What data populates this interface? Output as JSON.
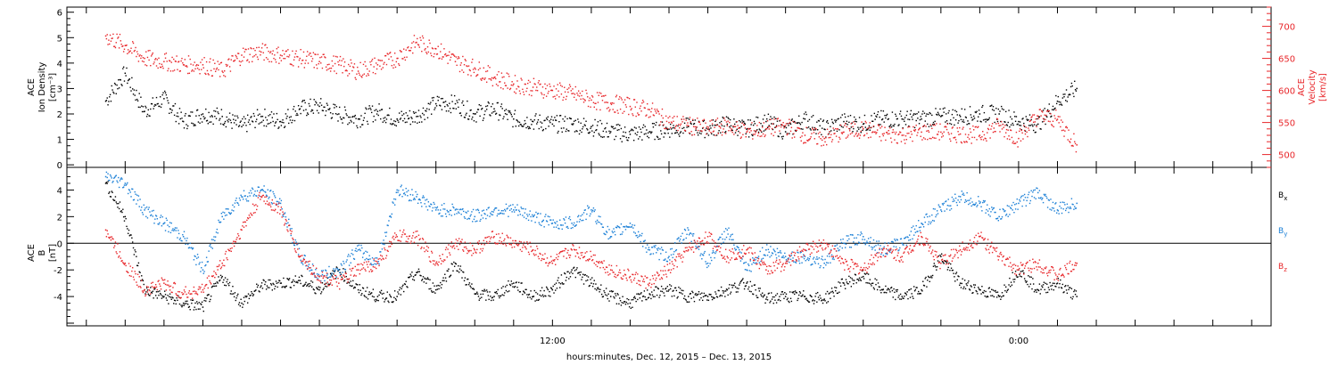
{
  "chart_data": [
    {
      "type": "scatter",
      "panel": "ion-density-velocity",
      "ylabel_left": [
        "ACE",
        "Ion Density",
        "[cm⁻³]"
      ],
      "ylabel_right": [
        "ACE",
        "Velocity",
        "[km/s]"
      ],
      "ylim_left": [
        -0.1,
        6.2
      ],
      "ylim_right": [
        480,
        730
      ],
      "yticks_left": [
        "0",
        "1",
        "2",
        "3",
        "4",
        "5",
        "6"
      ],
      "yticks_right": [
        "500",
        "550",
        "600",
        "650",
        "700"
      ],
      "series": [
        {
          "name": "",
          "color": "#000000",
          "axis": "left",
          "x": [
            0.0,
            0.5,
            1.0,
            1.5,
            2.0,
            2.5,
            3.0,
            3.5,
            4.0,
            4.5,
            5.0,
            5.5,
            6.0,
            6.5,
            7.0,
            7.5,
            8.0,
            8.5,
            9.0,
            9.5,
            10.0,
            10.5,
            11.0,
            11.5,
            12.0,
            12.5,
            13.0,
            13.5,
            14.0,
            14.5,
            15.0,
            15.5,
            16.0,
            16.5,
            17.0,
            17.5,
            18.0,
            18.5,
            19.0,
            19.5,
            20.0,
            20.5,
            21.0,
            21.5,
            22.0,
            22.5,
            23.0,
            23.5,
            24.0,
            24.5,
            25.0
          ],
          "y": [
            2.5,
            3.6,
            2.1,
            2.6,
            1.7,
            2.0,
            1.9,
            1.5,
            1.9,
            1.7,
            2.2,
            2.3,
            2.0,
            1.8,
            2.1,
            1.8,
            1.9,
            2.4,
            2.4,
            2.0,
            2.2,
            1.8,
            1.7,
            1.6,
            1.6,
            1.5,
            1.3,
            1.2,
            1.3,
            1.4,
            1.5,
            1.4,
            1.6,
            1.4,
            1.7,
            1.3,
            1.8,
            1.4,
            1.7,
            1.6,
            1.8,
            1.8,
            1.8,
            1.9,
            1.9,
            2.0,
            2.0,
            1.7,
            1.6,
            2.5,
            3.0
          ]
        },
        {
          "name": "",
          "color": "#e8262a",
          "axis": "right",
          "x": [
            0.0,
            0.5,
            1.0,
            1.5,
            2.0,
            2.5,
            3.0,
            3.5,
            4.0,
            4.5,
            5.0,
            5.5,
            6.0,
            6.5,
            7.0,
            7.5,
            8.0,
            8.5,
            9.0,
            9.5,
            10.0,
            10.5,
            11.0,
            11.5,
            12.0,
            12.5,
            13.0,
            13.5,
            14.0,
            14.5,
            15.0,
            15.5,
            16.0,
            16.5,
            17.0,
            17.5,
            18.0,
            18.5,
            19.0,
            19.5,
            20.0,
            20.5,
            21.0,
            21.5,
            22.0,
            22.5,
            23.0,
            23.5,
            24.0,
            24.5,
            25.0
          ],
          "y": [
            685,
            670,
            650,
            645,
            640,
            640,
            630,
            655,
            660,
            655,
            650,
            645,
            640,
            630,
            640,
            650,
            675,
            665,
            645,
            635,
            620,
            610,
            605,
            600,
            595,
            585,
            580,
            575,
            570,
            550,
            545,
            540,
            545,
            535,
            540,
            545,
            530,
            525,
            535,
            540,
            532,
            530,
            535,
            535,
            532,
            530,
            545,
            525,
            560,
            555,
            515
          ]
        }
      ]
    },
    {
      "type": "scatter",
      "panel": "magnetic-field",
      "ylabel_left": [
        "ACE",
        "B",
        "[nT]"
      ],
      "ylim_left": [
        -6.2,
        5.7
      ],
      "yticks_left": [
        "-4",
        "-2",
        "0",
        "2",
        "4"
      ],
      "legend": [
        {
          "label": "Bx",
          "color": "#000000"
        },
        {
          "label": "By",
          "color": "#1a7fd6"
        },
        {
          "label": "Bz",
          "color": "#e8262a"
        }
      ],
      "series": [
        {
          "name": "Bx",
          "color": "#000000",
          "x": [
            0.0,
            0.5,
            1.0,
            1.5,
            2.0,
            2.5,
            3.0,
            3.5,
            4.0,
            4.5,
            5.0,
            5.5,
            6.0,
            6.5,
            7.0,
            7.5,
            8.0,
            8.5,
            9.0,
            9.5,
            10.0,
            10.5,
            11.0,
            11.5,
            12.0,
            12.5,
            13.0,
            13.5,
            14.0,
            14.5,
            15.0,
            15.5,
            16.0,
            16.5,
            17.0,
            17.5,
            18.0,
            18.5,
            19.0,
            19.5,
            20.0,
            20.5,
            21.0,
            21.5,
            22.0,
            22.5,
            23.0,
            23.5,
            24.0,
            24.5,
            25.0
          ],
          "y": [
            4.5,
            2.0,
            -3.5,
            -4.0,
            -4.5,
            -4.8,
            -2.5,
            -4.5,
            -3.2,
            -3.0,
            -2.8,
            -3.5,
            -2.0,
            -3.5,
            -4.0,
            -4.0,
            -2.2,
            -3.5,
            -1.5,
            -3.8,
            -4.0,
            -3.0,
            -4.0,
            -3.5,
            -2.0,
            -3.0,
            -4.0,
            -4.5,
            -3.8,
            -3.5,
            -4.0,
            -4.0,
            -3.5,
            -3.0,
            -4.2,
            -4.0,
            -4.0,
            -4.2,
            -3.0,
            -2.5,
            -3.5,
            -4.0,
            -3.5,
            -1.0,
            -3.0,
            -3.5,
            -4.0,
            -2.0,
            -3.5,
            -3.0,
            -4.0
          ]
        },
        {
          "name": "By",
          "color": "#1a7fd6",
          "x": [
            0.0,
            0.5,
            1.0,
            1.5,
            2.0,
            2.5,
            3.0,
            3.5,
            4.0,
            4.5,
            5.0,
            5.5,
            6.0,
            6.5,
            7.0,
            7.5,
            8.0,
            8.5,
            9.0,
            9.5,
            10.0,
            10.5,
            11.0,
            11.5,
            12.0,
            12.5,
            13.0,
            13.5,
            14.0,
            14.5,
            15.0,
            15.5,
            16.0,
            16.5,
            17.0,
            17.5,
            18.0,
            18.5,
            19.0,
            19.5,
            20.0,
            20.5,
            21.0,
            21.5,
            22.0,
            22.5,
            23.0,
            23.5,
            24.0,
            24.5,
            25.0
          ],
          "y": [
            5.0,
            4.5,
            2.5,
            1.5,
            0.5,
            -2.0,
            2.0,
            3.5,
            4.0,
            3.0,
            -1.0,
            -2.5,
            -2.0,
            -0.5,
            -1.5,
            4.0,
            3.5,
            2.5,
            2.5,
            2.0,
            2.5,
            2.5,
            2.0,
            1.5,
            1.5,
            2.5,
            0.5,
            1.5,
            -0.5,
            -1.0,
            1.0,
            -1.5,
            1.0,
            -2.0,
            -0.5,
            -1.0,
            -1.0,
            -1.5,
            0.0,
            0.5,
            -0.5,
            0.0,
            1.5,
            2.5,
            3.5,
            3.0,
            2.0,
            3.0,
            3.8,
            2.5,
            3.0
          ]
        },
        {
          "name": "Bz",
          "color": "#e8262a",
          "x": [
            0.0,
            0.5,
            1.0,
            1.5,
            2.0,
            2.5,
            3.0,
            3.5,
            4.0,
            4.5,
            5.0,
            5.5,
            6.0,
            6.5,
            7.0,
            7.5,
            8.0,
            8.5,
            9.0,
            9.5,
            10.0,
            10.5,
            11.0,
            11.5,
            12.0,
            12.5,
            13.0,
            13.5,
            14.0,
            14.5,
            15.0,
            15.5,
            16.0,
            16.5,
            17.0,
            17.5,
            18.0,
            18.5,
            19.0,
            19.5,
            20.0,
            20.5,
            21.0,
            21.5,
            22.0,
            22.5,
            23.0,
            23.5,
            24.0,
            24.5,
            25.0
          ],
          "y": [
            1.0,
            -1.5,
            -3.5,
            -3.0,
            -3.8,
            -3.5,
            -1.5,
            1.0,
            3.5,
            2.5,
            -1.0,
            -2.5,
            -3.0,
            -2.0,
            -1.5,
            0.5,
            0.5,
            -1.5,
            0.0,
            -0.5,
            0.5,
            0.0,
            -0.5,
            -1.5,
            -0.5,
            -1.0,
            -2.0,
            -2.5,
            -3.0,
            -2.0,
            -0.5,
            0.5,
            -1.0,
            -0.5,
            -2.0,
            -1.5,
            -0.5,
            0.0,
            -1.5,
            -2.0,
            -0.5,
            -1.0,
            0.5,
            -1.5,
            -0.5,
            0.5,
            -1.0,
            -2.0,
            -1.5,
            -2.5,
            -1.5
          ]
        }
      ]
    }
  ],
  "x_axis": {
    "range_hours": [
      -1,
      30
    ],
    "tick_labels": [
      {
        "hour": 11.5,
        "label": "12:00"
      },
      {
        "hour": 23.5,
        "label": "0:00"
      }
    ],
    "xlabel": "hours:minutes, Dec. 12, 2015 – Dec. 13, 2015"
  }
}
